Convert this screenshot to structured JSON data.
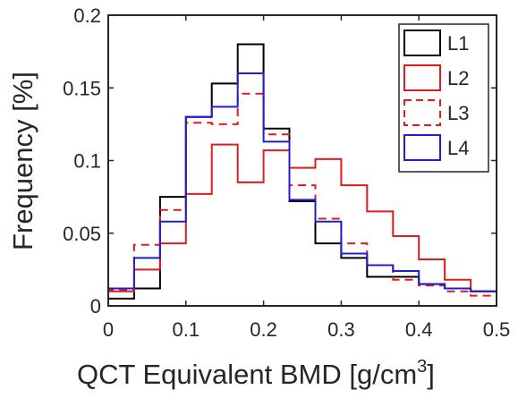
{
  "chart_data": {
    "type": "histogram",
    "xlabel": "QCT Equivalent BMD [g/cm",
    "xlabel_sup": "3",
    "xlabel_end": "]",
    "ylabel": "Frequency [%]",
    "xlim": [
      0,
      0.5
    ],
    "ylim": [
      0,
      0.2
    ],
    "xticks": [
      0,
      0.1,
      0.2,
      0.3,
      0.4,
      0.5
    ],
    "xtick_labels": [
      "0",
      "0.1",
      "0.2",
      "0.3",
      "0.4",
      "0.5"
    ],
    "yticks": [
      0,
      0.05,
      0.1,
      0.15,
      0.2
    ],
    "ytick_labels": [
      "0",
      "0.05",
      "0.1",
      "0.15",
      "0.2"
    ],
    "grid": false,
    "legend_position": "top-right",
    "bin_edges": [
      0,
      0.0333,
      0.0667,
      0.1,
      0.1333,
      0.1667,
      0.2,
      0.2333,
      0.2667,
      0.3,
      0.3333,
      0.3667,
      0.4,
      0.4333,
      0.4667,
      0.5
    ],
    "series": [
      {
        "name": "L1",
        "color": "#000000",
        "dash": "solid",
        "values": [
          0.005,
          0.012,
          0.075,
          0.13,
          0.153,
          0.18,
          0.122,
          0.072,
          0.043,
          0.033,
          0.02,
          0.02,
          0.015,
          0.012,
          0.01
        ]
      },
      {
        "name": "L2",
        "color": "#e31a1c",
        "dash": "solid",
        "values": [
          0.01,
          0.025,
          0.043,
          0.077,
          0.111,
          0.085,
          0.107,
          0.095,
          0.101,
          0.083,
          0.065,
          0.048,
          0.032,
          0.018,
          0.01
        ]
      },
      {
        "name": "L3",
        "color": "#e31a1c",
        "dash": "dashed",
        "values": [
          0.011,
          0.042,
          0.066,
          0.126,
          0.125,
          0.146,
          0.118,
          0.083,
          0.06,
          0.043,
          0.028,
          0.018,
          0.014,
          0.01,
          0.007
        ]
      },
      {
        "name": "L4",
        "color": "#1f1fd1",
        "dash": "solid",
        "values": [
          0.012,
          0.033,
          0.058,
          0.13,
          0.137,
          0.16,
          0.113,
          0.073,
          0.058,
          0.036,
          0.028,
          0.024,
          0.015,
          0.012,
          0.01
        ]
      }
    ]
  }
}
